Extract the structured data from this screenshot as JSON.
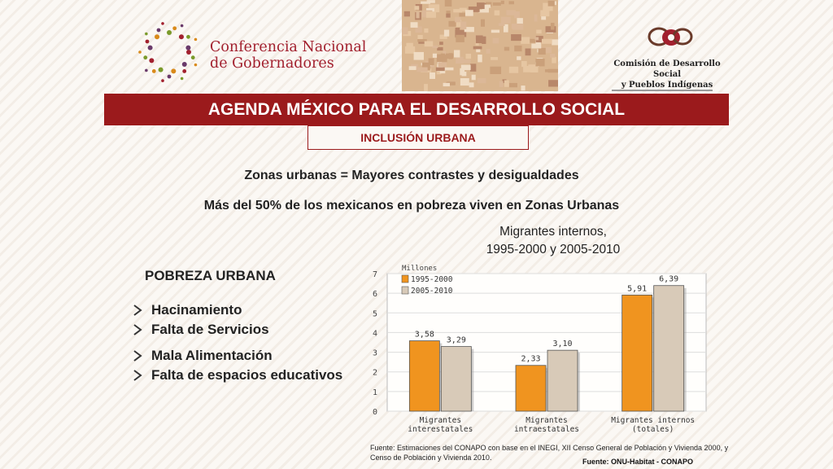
{
  "header": {
    "org_left_line1": "Conferencia Nacional",
    "org_left_line2": "de Gobernadores",
    "org_right_line1": "Comisión de Desarrollo Social",
    "org_right_line2": "y Pueblos Indígenas"
  },
  "banner": {
    "title": "AGENDA MÉXICO PARA EL DESARROLLO SOCIAL"
  },
  "subtab": {
    "label": "INCLUSIÓN URBANA"
  },
  "body": {
    "line1": "Zonas urbanas = Mayores contrastes y desigualdades",
    "line2": "Más del 50% de los mexicanos en pobreza viven en Zonas Urbanas"
  },
  "chart_heading": {
    "line1": "Migrantes internos,",
    "line2": "1995-2000 y 2005-2010"
  },
  "poverty": {
    "title": "POBREZA URBANA",
    "items_a": [
      "Hacinamiento",
      "Falta de Servicios"
    ],
    "items_b": [
      "Mala Alimentación",
      "Falta de espacios educativos"
    ]
  },
  "chart_data": {
    "type": "bar",
    "unit_label": "Millones",
    "categories": [
      [
        "Migrantes",
        "interestatales"
      ],
      [
        "Migrantes",
        "intraestatales"
      ],
      [
        "Migrantes internos",
        "(totales)"
      ]
    ],
    "series": [
      {
        "name": "1995-2000",
        "values": [
          3.58,
          2.33,
          5.91
        ],
        "labels": [
          "3,58",
          "2,33",
          "5,91"
        ],
        "color": "#f0941f"
      },
      {
        "name": "2005-2010",
        "values": [
          3.29,
          3.1,
          6.39
        ],
        "labels": [
          "3,29",
          "3,10",
          "6,39"
        ],
        "color": "#d8cab8"
      }
    ],
    "ylim": [
      0,
      7
    ],
    "yticks": [
      "0",
      "1",
      "2",
      "3",
      "4",
      "5",
      "6",
      "7"
    ],
    "legend_position": "top-left",
    "grid": true
  },
  "source": {
    "text": "Fuente: Estimaciones del CONAPO con base en el INEGI, XII Censo General de Población y Vivienda 2000, y Censo de Población y Vivienda 2010.",
    "footer": "Fuente: ONU-Habitat - CONAPO"
  },
  "colors": {
    "brand_red": "#9b1a1c",
    "bar_orange": "#f0941f",
    "bar_beige": "#d8cab8"
  },
  "icons": {
    "bullet": "arrow-bullet-icon"
  }
}
